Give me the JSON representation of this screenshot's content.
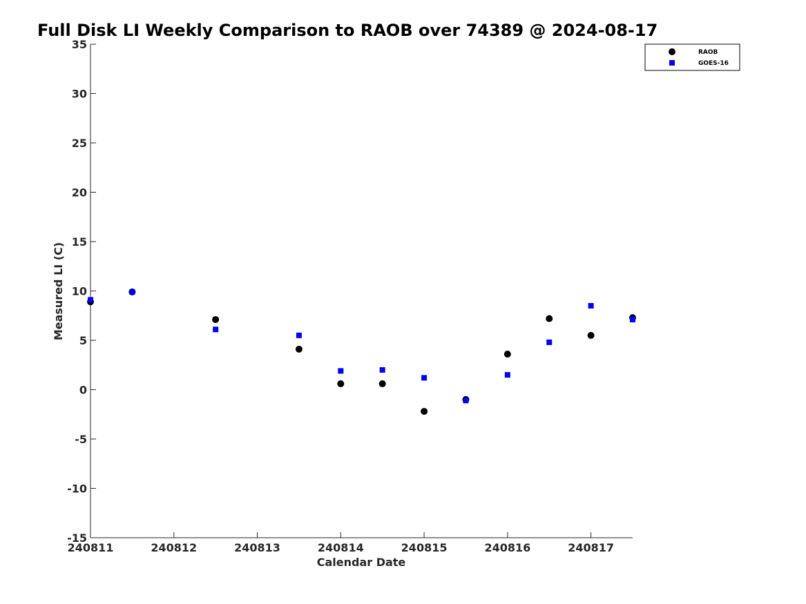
{
  "chart_data": {
    "type": "scatter",
    "title": "Full Disk LI Weekly Comparison to RAOB over 74389 @ 2024-08-17",
    "xlabel": "Calendar Date",
    "ylabel": "Measured LI (C)",
    "xlim": [
      240811,
      240817.5
    ],
    "ylim": [
      -15,
      35
    ],
    "xticks": [
      240811,
      240812,
      240813,
      240814,
      240815,
      240816,
      240817
    ],
    "xtick_labels": [
      "240811",
      "240812",
      "240813",
      "240814",
      "240815",
      "240816",
      "240817"
    ],
    "yticks": [
      -15,
      -10,
      -5,
      0,
      5,
      10,
      15,
      20,
      25,
      30,
      35
    ],
    "ytick_labels": [
      "-15",
      "-10",
      "-5",
      "0",
      "5",
      "10",
      "15",
      "20",
      "25",
      "30",
      "35"
    ],
    "grid": false,
    "legend_position": "top-right",
    "series": [
      {
        "name": "RAOB",
        "marker": "circle",
        "color": "#000000",
        "x": [
          240811,
          240811.5,
          240812.5,
          240813.5,
          240814,
          240814.5,
          240815,
          240815.5,
          240816,
          240816.5,
          240817,
          240817.5
        ],
        "y": [
          8.9,
          9.9,
          7.1,
          4.1,
          0.6,
          0.6,
          -2.2,
          -1.0,
          3.6,
          7.2,
          5.5,
          7.3
        ]
      },
      {
        "name": "GOES-16",
        "marker": "square",
        "color": "#0000ff",
        "x": [
          240811,
          240811.5,
          240812.5,
          240813.5,
          240814,
          240814.5,
          240815,
          240815.5,
          240816,
          240816.5,
          240817,
          240817.5
        ],
        "y": [
          9.1,
          9.9,
          6.1,
          5.5,
          1.9,
          2.0,
          1.2,
          -1.1,
          1.5,
          4.8,
          8.5,
          7.1
        ]
      }
    ]
  }
}
